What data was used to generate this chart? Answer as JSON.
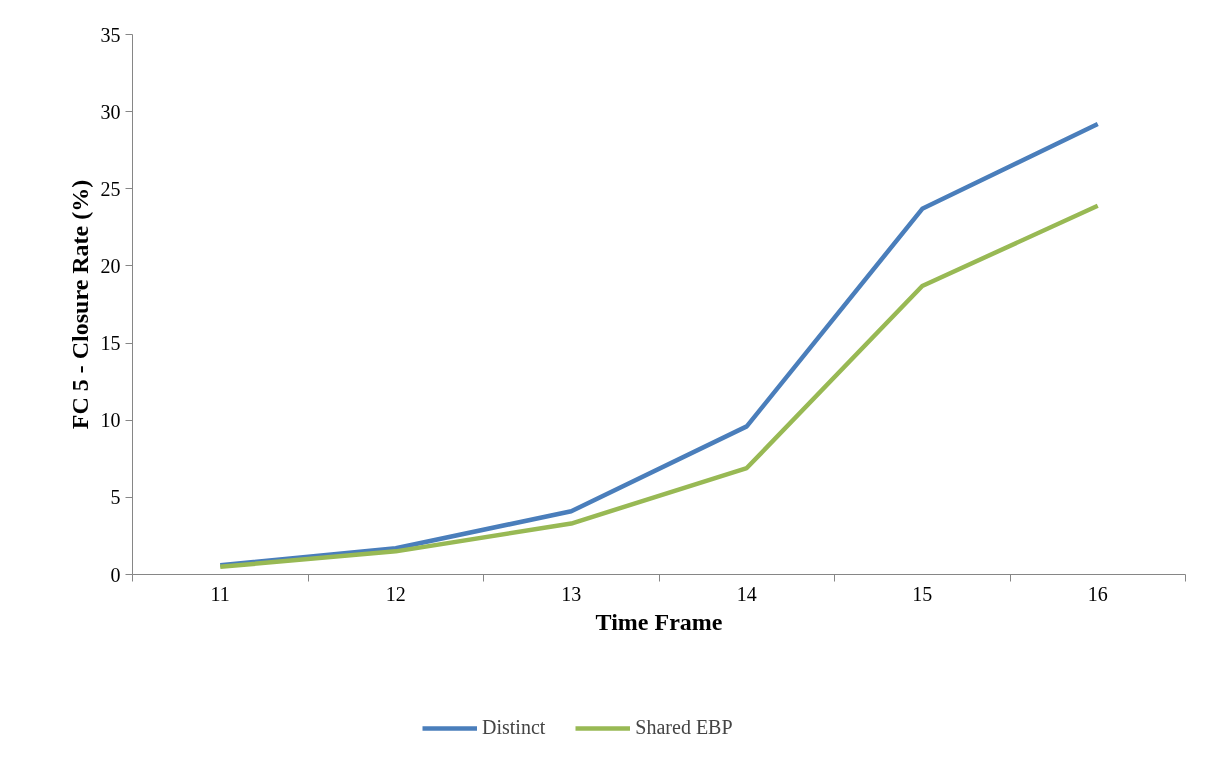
{
  "chart_data": {
    "type": "line",
    "xlabel": "Time Frame",
    "ylabel": "FC 5 - Closure Rate (%)",
    "categories": [
      "11",
      "12",
      "13",
      "14",
      "15",
      "16"
    ],
    "series": [
      {
        "name": "Distinct",
        "color": "#4a7ebb",
        "values": [
          0.6,
          1.7,
          4.1,
          9.6,
          23.7,
          29.2
        ]
      },
      {
        "name": "Shared EBP",
        "color": "#98b954",
        "values": [
          0.5,
          1.5,
          3.3,
          6.9,
          18.7,
          23.9
        ]
      }
    ],
    "ylim": [
      0,
      35
    ],
    "yticks": [
      0,
      5,
      10,
      15,
      20,
      25,
      30,
      35
    ],
    "grid": false,
    "legend": "bottom",
    "marker": "none",
    "line_style": "solid"
  }
}
